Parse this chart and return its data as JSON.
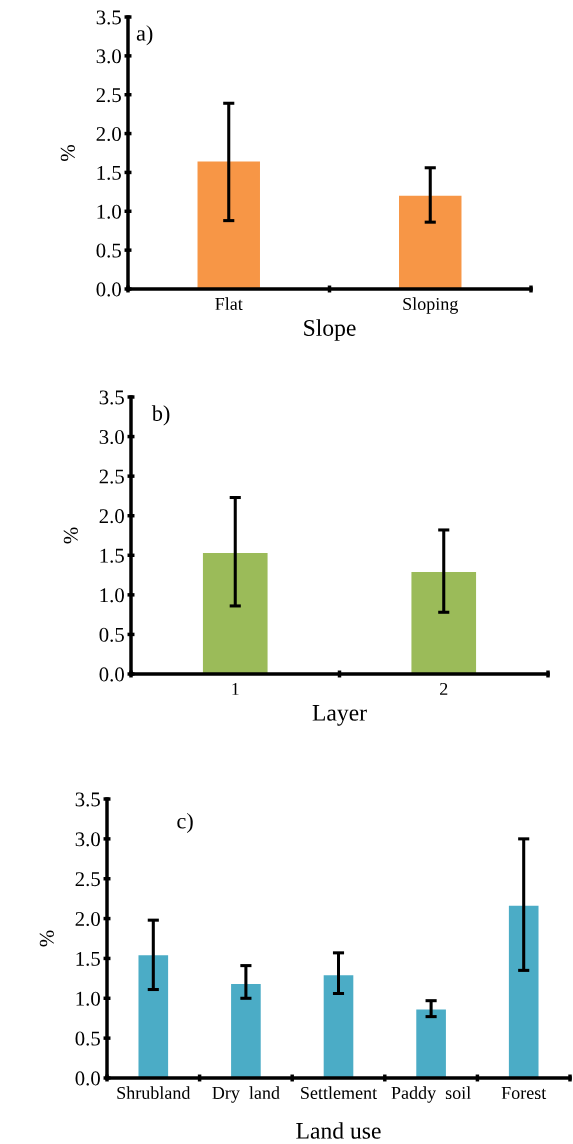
{
  "chart_data": [
    {
      "type": "bar",
      "categories": [
        "Flat",
        "Sloping"
      ],
      "xlabel": "Slope",
      "ylabel": "%",
      "annotations": [
        "a)"
      ],
      "series": [
        {
          "color": "#f79646",
          "values": [
            1.64,
            1.2
          ],
          "errors": [
            [
              0.88,
              2.39
            ],
            [
              0.86,
              1.56
            ]
          ]
        }
      ],
      "ylim": [
        0,
        3.5
      ],
      "yticks": [
        {
          "value": 0,
          "label": "0.0"
        },
        0.5,
        {
          "value": 1,
          "label": "1.0"
        },
        1.5,
        {
          "value": 2,
          "label": "2.0"
        },
        2.5,
        {
          "value": 3,
          "label": "3.0"
        },
        3.5
      ],
      "grid": false
    },
    {
      "type": "bar",
      "categories": [
        "1",
        "2"
      ],
      "xlabel": "Layer",
      "ylabel": "%",
      "annotations": [
        "b)"
      ],
      "series": [
        {
          "color": "#9bbb59",
          "values": [
            1.53,
            1.29
          ],
          "errors": [
            [
              0.86,
              2.23
            ],
            [
              0.78,
              1.82
            ]
          ]
        }
      ],
      "ylim": [
        0,
        3.5
      ],
      "yticks": [
        {
          "value": 0,
          "label": "0.0"
        },
        0.5,
        {
          "value": 1,
          "label": "1.0"
        },
        1.5,
        {
          "value": 2,
          "label": "2.0"
        },
        2.5,
        {
          "value": 3,
          "label": "3.0"
        },
        3.5
      ],
      "grid": false
    },
    {
      "type": "bar",
      "categories": [
        "Shrubland",
        "Dry  land",
        "Settlement",
        "Paddy  soil",
        "Forest"
      ],
      "xlabel": "Land use",
      "ylabel": "%",
      "annotations": [
        "c)"
      ],
      "series": [
        {
          "color": "#4bacc6",
          "values": [
            1.54,
            1.18,
            1.29,
            0.86,
            2.16
          ],
          "errors": [
            [
              1.11,
              1.98
            ],
            [
              1.0,
              1.41
            ],
            [
              1.06,
              1.57
            ],
            [
              0.77,
              0.97
            ],
            [
              1.35,
              3.0
            ]
          ]
        }
      ],
      "ylim": [
        0,
        3.5
      ],
      "yticks": [
        {
          "value": 0,
          "label": "0.0"
        },
        0.5,
        {
          "value": 1,
          "label": "1.0"
        },
        1.5,
        {
          "value": 2,
          "label": "2.0"
        },
        2.5,
        {
          "value": 3,
          "label": "3.0"
        },
        3.5
      ],
      "grid": false
    }
  ]
}
